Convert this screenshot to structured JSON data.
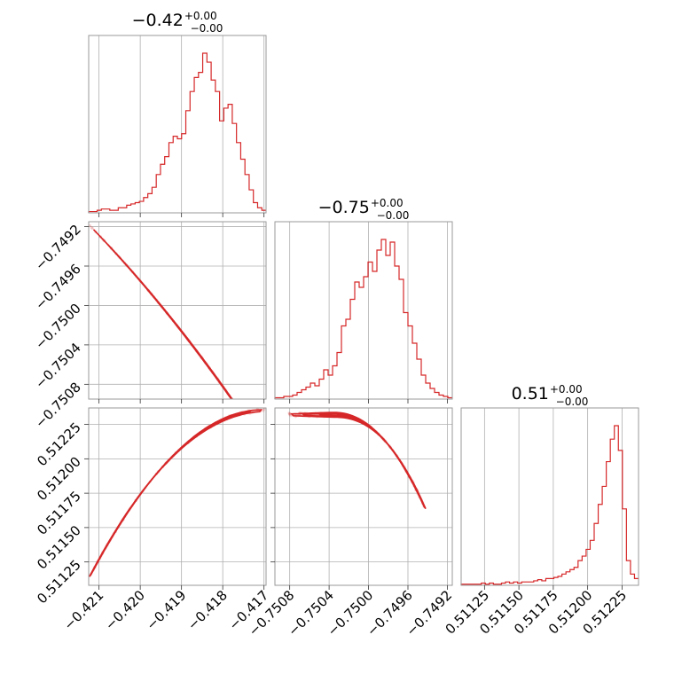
{
  "chart_data": {
    "type": "corner",
    "color": "#d62728",
    "grid": true,
    "parameters": [
      {
        "title": {
          "main": "−0.42",
          "plus": "+0.00",
          "minus": "−0.00"
        },
        "range": [
          -0.42125,
          -0.41695
        ],
        "ticks": [
          -0.421,
          -0.42,
          -0.419,
          -0.418,
          -0.417
        ],
        "tick_labels": [
          "−0.421",
          "−0.420",
          "−0.419",
          "−0.418",
          "−0.417"
        ]
      },
      {
        "title": {
          "main": "−0.75",
          "plus": "+0.00",
          "minus": "−0.00"
        },
        "range": [
          -0.75095,
          -0.74915
        ],
        "ticks": [
          -0.7508,
          -0.7504,
          -0.75,
          -0.7496,
          -0.7492
        ],
        "tick_labels": [
          "−0.7508",
          "−0.7504",
          "−0.7500",
          "−0.7496",
          "−0.7492"
        ]
      },
      {
        "title": {
          "main": "0.51",
          "plus": "+0.00",
          "minus": "−0.00"
        },
        "range": [
          0.51108,
          0.51237
        ],
        "ticks": [
          0.51125,
          0.5115,
          0.51175,
          0.512,
          0.51225
        ],
        "tick_labels": [
          "0.51125",
          "0.51150",
          "0.51175",
          "0.51200",
          "0.51225"
        ]
      }
    ],
    "histograms": [
      {
        "param": 0,
        "counts": [
          1,
          1,
          2,
          3,
          3,
          2,
          2,
          4,
          4,
          6,
          7,
          8,
          9,
          12,
          15,
          20,
          30,
          38,
          44,
          55,
          60,
          58,
          62,
          80,
          95,
          106,
          110,
          125,
          118,
          104,
          95,
          72,
          82,
          85,
          70,
          55,
          42,
          30,
          18,
          8,
          4,
          2
        ]
      },
      {
        "param": 1,
        "counts": [
          1,
          1,
          2,
          2,
          3,
          5,
          7,
          9,
          12,
          10,
          15,
          22,
          18,
          25,
          35,
          55,
          60,
          75,
          88,
          84,
          92,
          103,
          96,
          112,
          120,
          108,
          118,
          100,
          90,
          65,
          55,
          42,
          30,
          18,
          12,
          8,
          5,
          3,
          2,
          1
        ]
      },
      {
        "param": 2,
        "counts": [
          1,
          1,
          1,
          1,
          1,
          2,
          1,
          2,
          1,
          1,
          2,
          3,
          2,
          3,
          2,
          3,
          3,
          3,
          4,
          5,
          4,
          6,
          6,
          7,
          8,
          10,
          12,
          14,
          16,
          22,
          26,
          32,
          40,
          55,
          72,
          88,
          110,
          130,
          142,
          120,
          68,
          22,
          10,
          6
        ]
      }
    ]
  }
}
